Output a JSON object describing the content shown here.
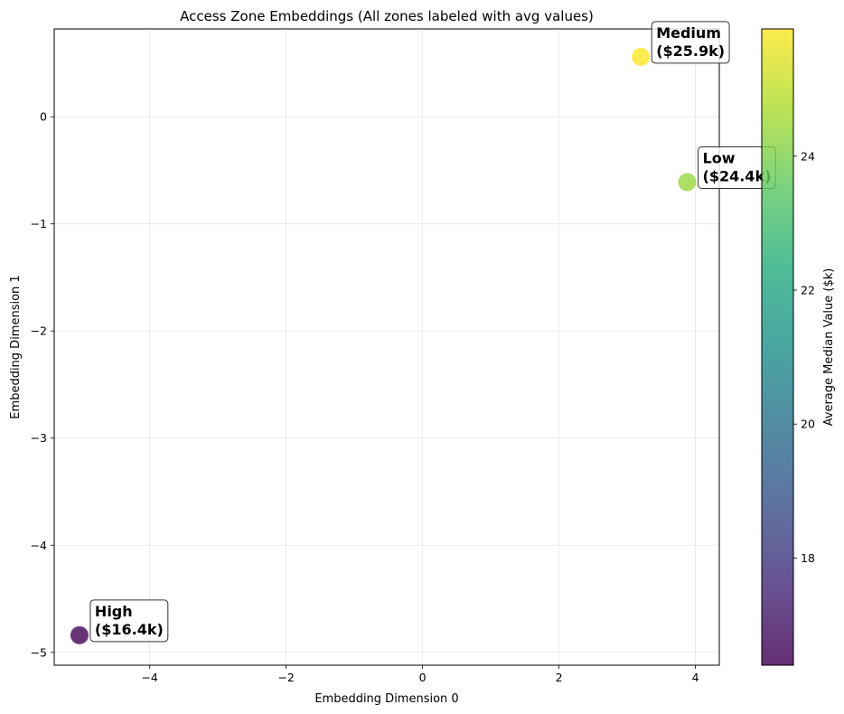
{
  "chart_data": {
    "type": "scatter",
    "title": "Access Zone Embeddings (All zones labeled with avg values)",
    "xlabel": "Embedding Dimension 0",
    "ylabel": "Embedding Dimension 1",
    "xlim": [
      -5.4,
      4.35
    ],
    "ylim": [
      -5.12,
      0.82
    ],
    "x_ticks": [
      -4,
      -2,
      0,
      2,
      4
    ],
    "y_ticks": [
      0,
      -1,
      -2,
      -3,
      -4,
      -5
    ],
    "grid": true,
    "points": [
      {
        "name": "Medium",
        "label": "Medium",
        "value_label": "($25.9k)",
        "x": 3.2,
        "y": 0.56,
        "value": 25.9
      },
      {
        "name": "Low",
        "label": "Low",
        "value_label": "($24.4k)",
        "x": 3.88,
        "y": -0.61,
        "value": 24.4
      },
      {
        "name": "High",
        "label": "High",
        "value_label": "($16.4k)",
        "x": -5.03,
        "y": -4.84,
        "value": 16.4
      }
    ],
    "colorbar": {
      "label": "Average Median Value ($k)",
      "min": 16.4,
      "max": 25.9,
      "ticks": [
        18,
        20,
        22,
        24
      ],
      "colormap": "viridis"
    }
  }
}
